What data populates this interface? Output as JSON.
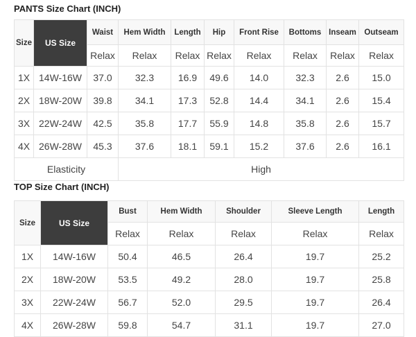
{
  "pants": {
    "title": "PANTS Size Chart (INCH)",
    "headers": [
      "Size",
      "US Size",
      "Waist",
      "Hem Width",
      "Length",
      "Hip",
      "Front Rise",
      "Bottoms",
      "Inseam",
      "Outseam"
    ],
    "sub": "Relax",
    "rows": [
      [
        "1X",
        "14W-16W",
        "37.0",
        "32.3",
        "16.9",
        "49.6",
        "14.0",
        "32.3",
        "2.6",
        "15.0"
      ],
      [
        "2X",
        "18W-20W",
        "39.8",
        "34.1",
        "17.3",
        "52.8",
        "14.4",
        "34.1",
        "2.6",
        "15.4"
      ],
      [
        "3X",
        "22W-24W",
        "42.5",
        "35.8",
        "17.7",
        "55.9",
        "14.8",
        "35.8",
        "2.6",
        "15.7"
      ],
      [
        "4X",
        "26W-28W",
        "45.3",
        "37.6",
        "18.1",
        "59.1",
        "15.2",
        "37.6",
        "2.6",
        "16.1"
      ]
    ],
    "elasticity_label": "Elasticity",
    "elasticity_value": "High"
  },
  "top": {
    "title": "TOP Size Chart (INCH)",
    "headers": [
      "Size",
      "US Size",
      "Bust",
      "Hem Width",
      "Shoulder",
      "Sleeve Length",
      "Length"
    ],
    "sub": "Relax",
    "rows": [
      [
        "1X",
        "14W-16W",
        "50.4",
        "46.5",
        "26.4",
        "19.7",
        "25.2"
      ],
      [
        "2X",
        "18W-20W",
        "53.5",
        "49.2",
        "28.0",
        "19.7",
        "25.8"
      ],
      [
        "3X",
        "22W-24W",
        "56.7",
        "52.0",
        "29.5",
        "19.7",
        "26.4"
      ],
      [
        "4X",
        "26W-28W",
        "59.8",
        "54.7",
        "31.1",
        "19.7",
        "27.0"
      ]
    ]
  }
}
